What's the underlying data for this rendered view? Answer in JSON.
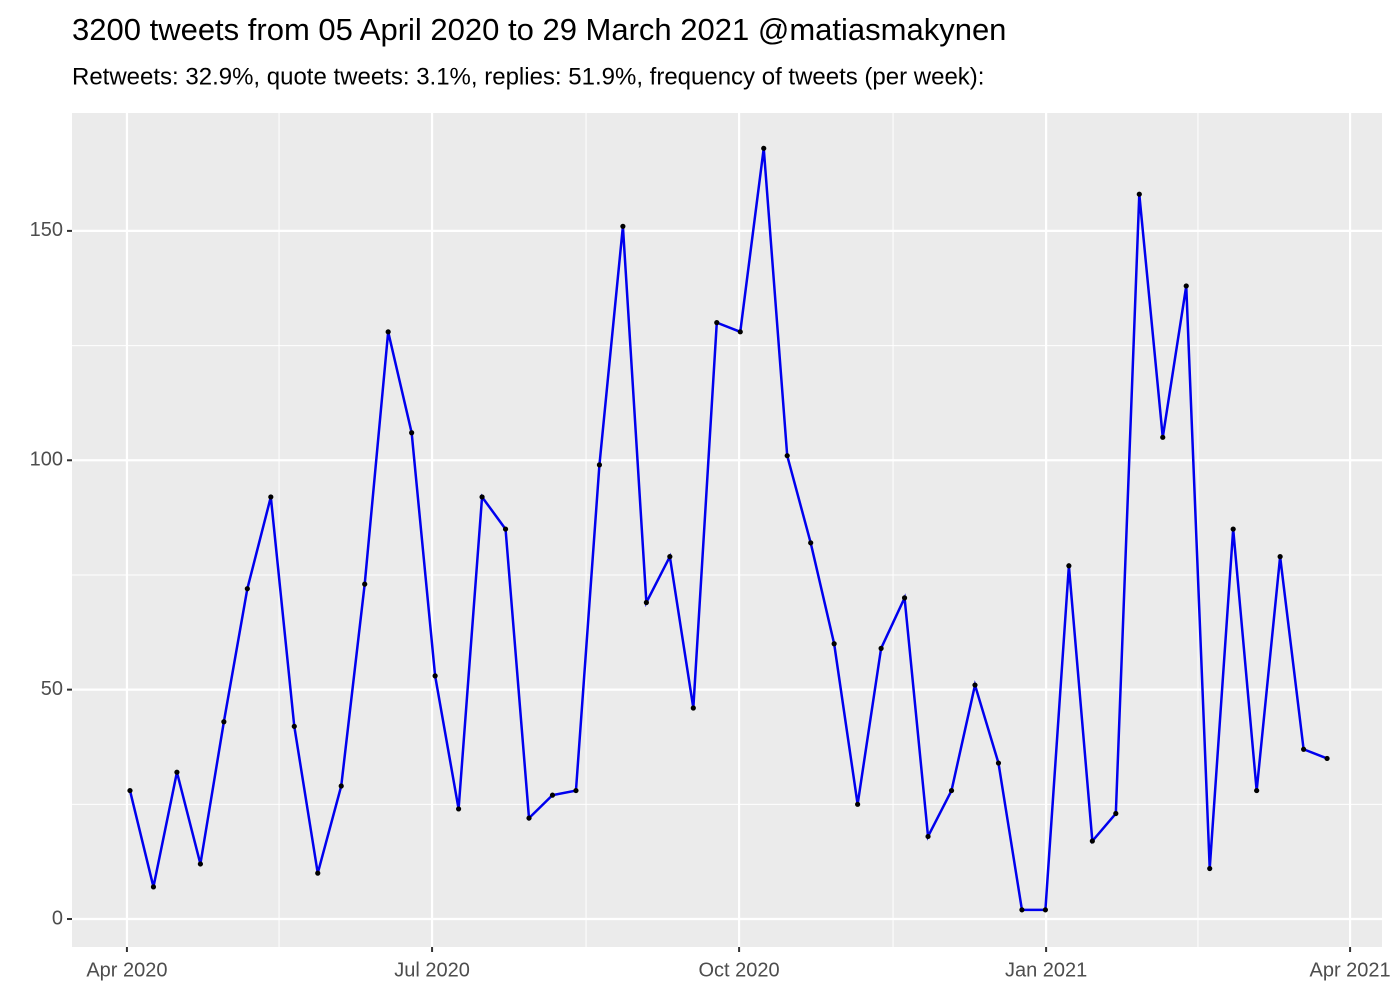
{
  "chart_data": {
    "type": "line",
    "title": "3200 tweets from 05 April 2020 to 29 March 2021 @matiasmakynen",
    "subtitle": "Retweets: 32.9%, quote tweets: 3.1%, replies: 51.9%, frequency of tweets (per week):",
    "x": [
      0,
      1,
      2,
      3,
      4,
      5,
      6,
      7,
      8,
      9,
      10,
      11,
      12,
      13,
      14,
      15,
      16,
      17,
      18,
      19,
      20,
      21,
      22,
      23,
      24,
      25,
      26,
      27,
      28,
      29,
      30,
      31,
      32,
      33,
      34,
      35,
      36,
      37,
      38,
      39,
      40,
      41,
      42,
      43,
      44,
      45,
      46,
      47,
      48,
      49,
      50,
      51
    ],
    "values": [
      28,
      7,
      32,
      12,
      43,
      72,
      92,
      42,
      10,
      29,
      73,
      128,
      106,
      53,
      24,
      92,
      85,
      22,
      27,
      28,
      99,
      151,
      69,
      79,
      46,
      130,
      128,
      168,
      101,
      82,
      60,
      25,
      59,
      70,
      18,
      28,
      51,
      34,
      2,
      2,
      77,
      17,
      23,
      158,
      105,
      138,
      11,
      85,
      28,
      79,
      37,
      35
    ],
    "color": "#0000ee",
    "point_color": "#000000",
    "xlim": [
      -2.47,
      53.34
    ],
    "xticks": [
      {
        "value": -0.13,
        "label": "Apr 2020"
      },
      {
        "value": 12.87,
        "label": "Jul 2020"
      },
      {
        "value": 25.95,
        "label": "Oct 2020"
      },
      {
        "value": 39.03,
        "label": "Jan 2021"
      },
      {
        "value": 51.98,
        "label": "Apr 2021"
      }
    ],
    "x_minor_grid": [
      6.35,
      19.43,
      32.51,
      45.5
    ],
    "ylim": [
      -6.1,
      175.7
    ],
    "yticks": [
      0,
      50,
      100,
      150
    ],
    "y_minor_grid": [
      25,
      75,
      125
    ],
    "grid": true
  }
}
